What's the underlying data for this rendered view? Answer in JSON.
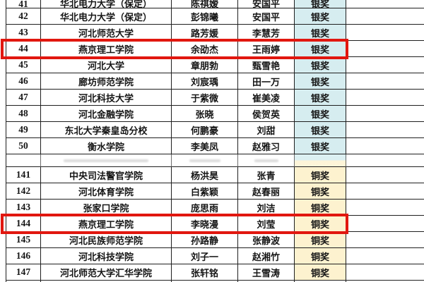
{
  "page": {
    "background": "#ffffff"
  },
  "table": {
    "description_columns": [
      "rank",
      "school",
      "member1",
      "member2",
      "award",
      "empty"
    ],
    "colors": {
      "silver_award_bg": "#d6edf0",
      "bronze_award_bg": "#fdf2cf",
      "highlight_red": "#e1170f",
      "border": "#1f1f1f"
    },
    "award_labels": {
      "silver": "银奖",
      "bronze": "铜奖"
    },
    "rows": [
      {
        "rank": "41",
        "school": "华北电力大学（保定）",
        "member1": "陈祺嫒",
        "member2": "安国平",
        "award": "银奖",
        "award_type": "silver",
        "cut_top": true
      },
      {
        "rank": "42",
        "school": "华北电力大学（保定）",
        "member1": "彭锦曦",
        "member2": "安国平",
        "award": "银奖",
        "award_type": "silver"
      },
      {
        "rank": "43",
        "school": "河北师范大学",
        "member1": "路芳媛",
        "member2": "李慧芳",
        "award": "银奖",
        "award_type": "silver"
      },
      {
        "rank": "44",
        "school": "燕京理工学院",
        "member1": "余劭杰",
        "member2": "王雨婷",
        "award": "银奖",
        "award_type": "silver",
        "highlighted": true
      },
      {
        "rank": "45",
        "school": "河北大学",
        "member1": "章朋勃",
        "member2": "甄雪艳",
        "award": "银奖",
        "award_type": "silver"
      },
      {
        "rank": "46",
        "school": "廊坊师范学院",
        "member1": "刘宸瑀",
        "member2": "田一万",
        "award": "银奖",
        "award_type": "silver"
      },
      {
        "rank": "47",
        "school": "河北科技大学",
        "member1": "于紫微",
        "member2": "崔美凌",
        "award": "银奖",
        "award_type": "silver"
      },
      {
        "rank": "48",
        "school": "河北金融学院",
        "member1": "张晓",
        "member2": "侯贺英",
        "award": "银奖",
        "award_type": "silver"
      },
      {
        "rank": "49",
        "school": "东北大学秦皇岛分校",
        "member1": "何鹏豪",
        "member2": "刘甜",
        "award": "银奖",
        "award_type": "silver"
      },
      {
        "rank": "50",
        "school": "衡水学院",
        "member1": "李美凤",
        "member2": "赵雅习",
        "award": "银奖",
        "award_type": "silver"
      },
      {
        "type": "seam"
      },
      {
        "rank": "141",
        "school": "中央司法警官学院",
        "member1": "杨洪昊",
        "member2": "张青",
        "award": "铜奖",
        "award_type": "bronze"
      },
      {
        "rank": "142",
        "school": "河北体育学院",
        "member1": "白紫颖",
        "member2": "赵春丽",
        "award": "铜奖",
        "award_type": "bronze"
      },
      {
        "rank": "143",
        "school": "张家口学院",
        "member1": "庞思雨",
        "member2": "刘洁",
        "award": "铜奖",
        "award_type": "bronze"
      },
      {
        "rank": "144",
        "school": "燕京理工学院",
        "member1": "李晓漫",
        "member2": "刘莹",
        "award": "铜奖",
        "award_type": "bronze",
        "highlighted": true
      },
      {
        "rank": "145",
        "school": "河北民族师范学院",
        "member1": "孙路静",
        "member2": "张静波",
        "award": "铜奖",
        "award_type": "bronze"
      },
      {
        "rank": "146",
        "school": "河北科技学院",
        "member1": "刘子一",
        "member2": "赵湘竹",
        "award": "铜奖",
        "award_type": "bronze"
      },
      {
        "rank": "147",
        "school": "河北师范大学汇华学院",
        "member1": "张轩铭",
        "member2": "王雪涛",
        "award": "铜奖",
        "award_type": "bronze"
      },
      {
        "type": "partial_bottom"
      }
    ]
  }
}
